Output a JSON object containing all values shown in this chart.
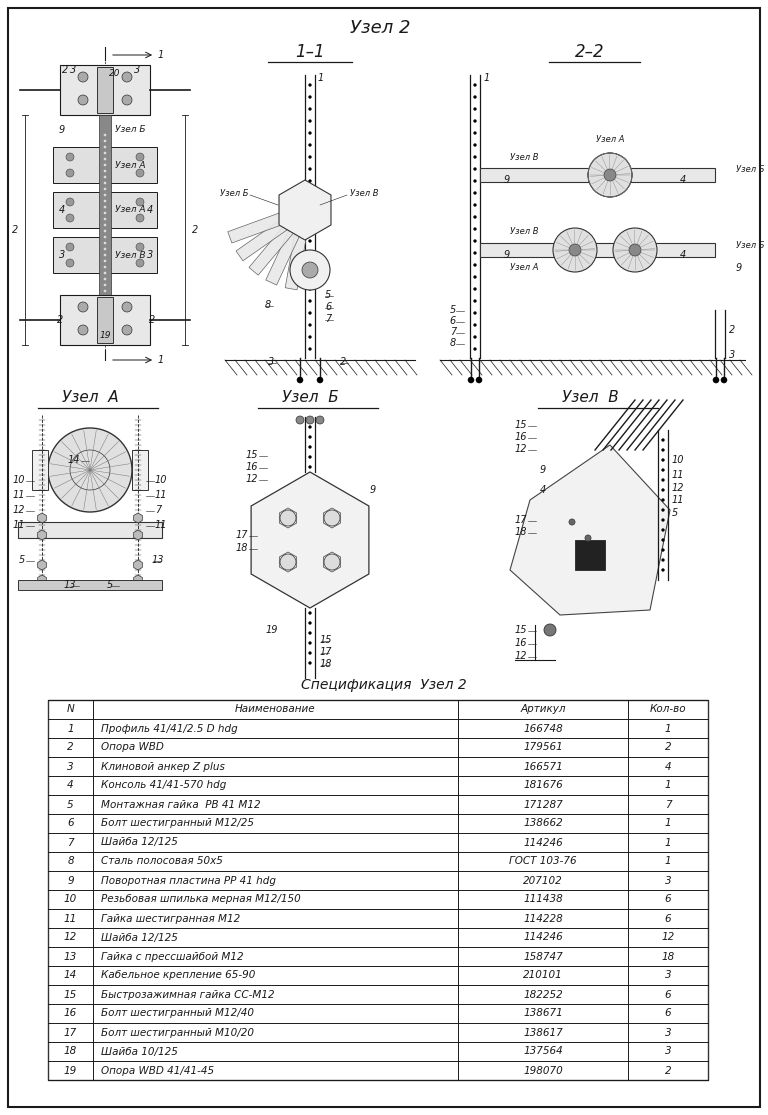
{
  "title": "Узел 2",
  "section_1_1": "1–1",
  "section_2_2": "2–2",
  "node_a": "Узел  А",
  "node_b": "Узел  Б",
  "node_c": "Узел  В",
  "spec_title": "Спецификация  Узел 2",
  "table_headers": [
    "N",
    "Наименование",
    "Артикул",
    "Кол-во"
  ],
  "table_data": [
    [
      "1",
      "Профиль 41/41/2.5 D hdg",
      "166748",
      "1"
    ],
    [
      "2",
      "Опора WBD",
      "179561",
      "2"
    ],
    [
      "3",
      "Клиновой анкер Z plus",
      "166571",
      "4"
    ],
    [
      "4",
      "Консоль 41/41-570 hdg",
      "181676",
      "1"
    ],
    [
      "5",
      "Монтажная гайка  РВ 41 М12",
      "171287",
      "7"
    ],
    [
      "6",
      "Болт шестигранный М12/25",
      "138662",
      "1"
    ],
    [
      "7",
      "Шайба 12/125",
      "114246",
      "1"
    ],
    [
      "8",
      "Сталь полосовая 50х5",
      "ГОСТ 103-76",
      "1"
    ],
    [
      "9",
      "Поворотная пластина РР 41 hdg",
      "207102",
      "3"
    ],
    [
      "10",
      "Резьбовая шпилька мерная М12/150",
      "111438",
      "6"
    ],
    [
      "11",
      "Гайка шестигранная М12",
      "114228",
      "6"
    ],
    [
      "12",
      "Шайба 12/125",
      "114246",
      "12"
    ],
    [
      "13",
      "Гайка с прессшайбой М12",
      "158747",
      "18"
    ],
    [
      "14",
      "Кабельное крепление 65-90",
      "210101",
      "3"
    ],
    [
      "15",
      "Быстрозажимная гайка СС-М12",
      "182252",
      "6"
    ],
    [
      "16",
      "Болт шестигранный М12/40",
      "138671",
      "6"
    ],
    [
      "17",
      "Болт шестигранный М10/20",
      "138617",
      "3"
    ],
    [
      "18",
      "Шайба 10/125",
      "137564",
      "3"
    ],
    [
      "19",
      "Опора WBD 41/41-45",
      "198070",
      "2"
    ]
  ],
  "bg_color": "#ffffff"
}
